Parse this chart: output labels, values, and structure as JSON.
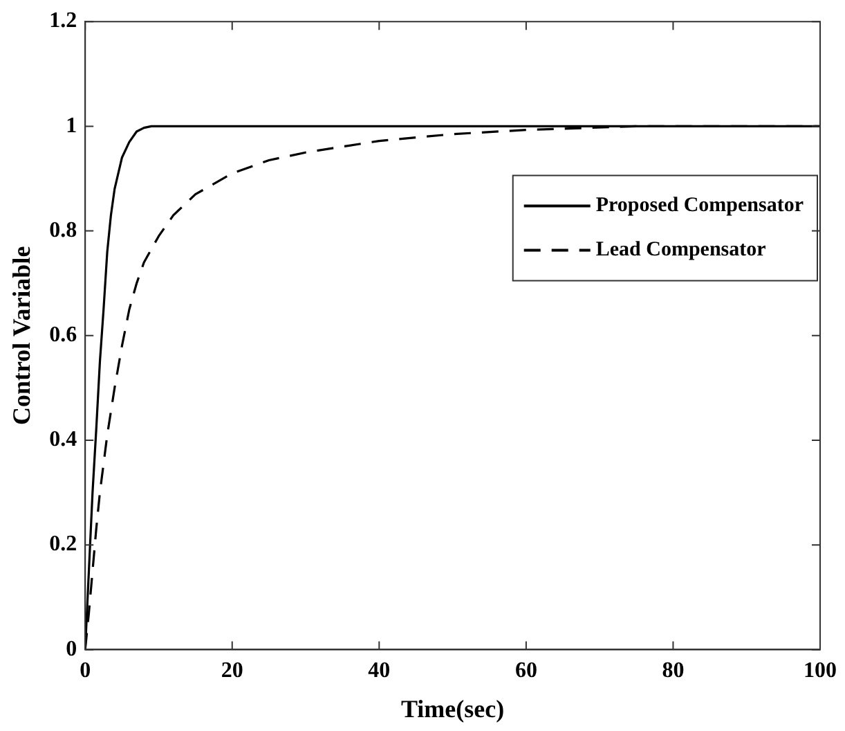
{
  "chart_data": {
    "type": "line",
    "xlabel": "Time(sec)",
    "ylabel": "Control Variable",
    "xlim": [
      0,
      100
    ],
    "xticks": [
      0,
      20,
      40,
      60,
      80,
      100
    ],
    "ylim": [
      0,
      1.2
    ],
    "yticks": [
      0,
      0.2,
      0.4,
      0.6,
      0.8,
      1,
      1.2
    ],
    "grid": false,
    "legend": "top right",
    "marker": "none",
    "series": [
      {
        "name": "Proposed Compensator",
        "color": "#000000",
        "line_style": "solid",
        "x": [
          0,
          0.5,
          1,
          1.5,
          2,
          2.5,
          3,
          3.5,
          4,
          5,
          6,
          7,
          8,
          9,
          100
        ],
        "values": [
          0,
          0.15,
          0.3,
          0.42,
          0.55,
          0.65,
          0.76,
          0.83,
          0.88,
          0.94,
          0.97,
          0.99,
          0.997,
          1,
          1
        ]
      },
      {
        "name": "Lead Compensator",
        "color": "#000000",
        "line_style": "dashed",
        "x": [
          0,
          0.5,
          1,
          1.5,
          2,
          3,
          4,
          5,
          6,
          7,
          8,
          10,
          12,
          15,
          20,
          25,
          30,
          40,
          50,
          60,
          75,
          100
        ],
        "values": [
          0,
          0.07,
          0.15,
          0.23,
          0.3,
          0.41,
          0.5,
          0.58,
          0.65,
          0.7,
          0.74,
          0.79,
          0.83,
          0.87,
          0.91,
          0.935,
          0.95,
          0.972,
          0.985,
          0.993,
          1,
          1
        ]
      }
    ]
  }
}
